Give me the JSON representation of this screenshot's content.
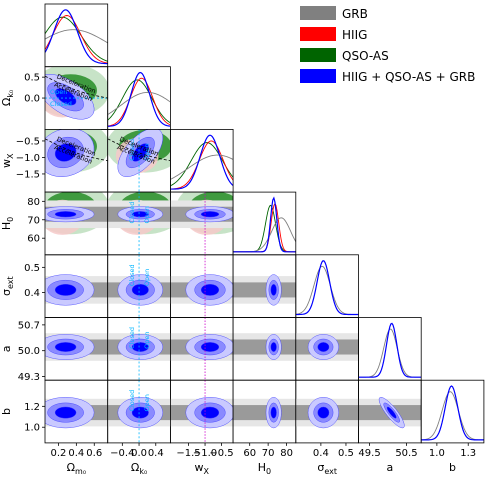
{
  "chart_data": {
    "type": "corner",
    "parameters": [
      {
        "key": "Om",
        "label_main": "Ω",
        "label_sub": "m₀",
        "ticks": [
          "0.2",
          "0.4",
          "0.6"
        ],
        "tick_values": [
          0.2,
          0.4,
          0.6
        ],
        "range": [
          0.05,
          0.75
        ],
        "peak": 0.28,
        "width": 0.13
      },
      {
        "key": "Ok",
        "label_main": "Ω",
        "label_sub": "k₀",
        "ticks": [
          "−0.4",
          "0.0",
          "0.4"
        ],
        "tick_values": [
          -0.4,
          0.0,
          0.4
        ],
        "range": [
          -0.75,
          0.75
        ],
        "peak": 0.03,
        "width": 0.22
      },
      {
        "key": "wx",
        "label_main": "w",
        "label_sub": "X",
        "ticks": [
          "−1.5",
          "−1.0",
          "−0.5"
        ],
        "tick_values": [
          -1.5,
          -1.0,
          -0.5
        ],
        "range": [
          -2.05,
          -0.15
        ],
        "peak": -0.85,
        "width": 0.3
      },
      {
        "key": "H0",
        "label_main": "H",
        "label_sub": "0",
        "ticks": [
          "60",
          "70",
          "80"
        ],
        "tick_values": [
          60,
          70,
          80
        ],
        "range": [
          51,
          85
        ],
        "peak": 73.0,
        "width": 1.7
      },
      {
        "key": "sig",
        "label_main": "σ",
        "label_sub": "ext",
        "ticks": [
          "0.4",
          "0.5"
        ],
        "tick_values": [
          0.4,
          0.5
        ],
        "range": [
          0.3,
          0.55
        ],
        "peak": 0.41,
        "width": 0.025
      },
      {
        "key": "a",
        "label_main": "a",
        "label_sub": "",
        "ticks": [
          "49.5",
          "50.5"
        ],
        "tick_values": [
          49.5,
          50.5
        ],
        "range": [
          49.2,
          50.9
        ],
        "peak": 50.1,
        "width": 0.14
      },
      {
        "key": "b",
        "label_main": "b",
        "label_sub": "",
        "ticks": [
          "1.0",
          "1.3"
        ],
        "tick_values": [
          1.0,
          1.3
        ],
        "range": [
          0.85,
          1.45
        ],
        "peak": 1.14,
        "width": 0.06
      }
    ],
    "left_ticks": {
      "Ok": [
        "0.0",
        "0.5"
      ],
      "wx": [
        "−0.5",
        "−1.0",
        "−1.5"
      ],
      "H0": [
        "80",
        "70",
        "60"
      ],
      "sig": [
        "0.5",
        "0.4"
      ],
      "a": [
        "50.7",
        "50.0",
        "49.3"
      ],
      "b": [
        "1.2",
        "1.0"
      ]
    },
    "series": [
      {
        "name": "GRB",
        "color": "#808080"
      },
      {
        "name": "HIIG",
        "color": "#ff0000"
      },
      {
        "name": "QSO-AS",
        "color": "#006400"
      },
      {
        "name": "HIIG + QSO-AS + GRB",
        "color": "#0000ff"
      }
    ],
    "annotations": {
      "deceleration": "Deceleration",
      "acceleration": "Acceleration",
      "open": "Open",
      "closed": "Closed"
    }
  }
}
